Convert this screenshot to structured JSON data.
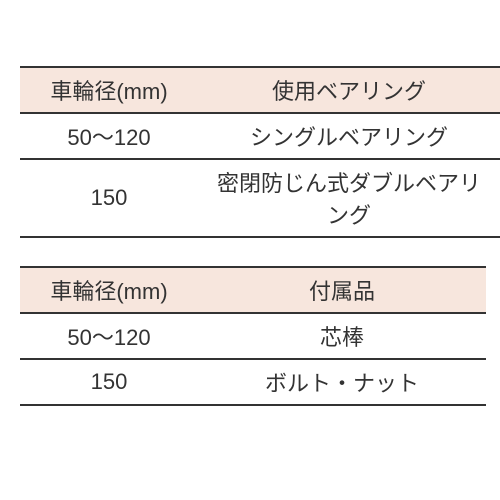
{
  "tables": [
    {
      "columns": [
        "車輪径(mm)",
        "使用ベアリング"
      ],
      "rows": [
        [
          "50〜120",
          "シングルベアリング"
        ],
        [
          "150",
          "密閉防じん式ダブルベアリング"
        ]
      ],
      "header_bg": "#f7e6dd",
      "border_color": "#333333",
      "text_color": "#333333",
      "fontsize": 22
    },
    {
      "columns": [
        "車輪径(mm)",
        "付属品"
      ],
      "rows": [
        [
          "50〜120",
          "芯棒"
        ],
        [
          "150",
          "ボルト・ナット"
        ]
      ],
      "header_bg": "#f7e6dd",
      "border_color": "#333333",
      "text_color": "#333333",
      "fontsize": 22
    }
  ],
  "background_color": "#ffffff"
}
